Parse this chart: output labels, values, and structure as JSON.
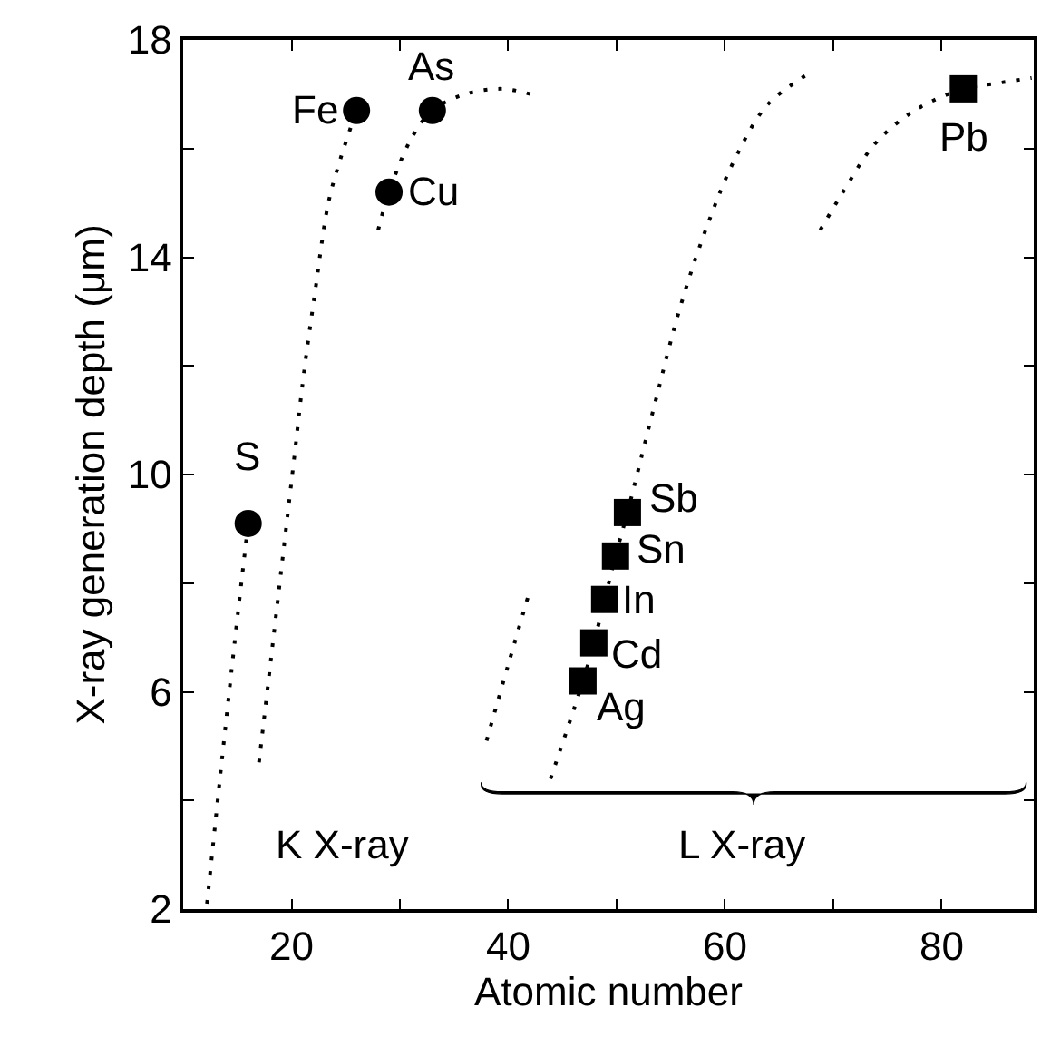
{
  "chart_data": {
    "type": "scatter",
    "xlabel": "Atomic number",
    "ylabel": "X-ray generation depth (μm)",
    "xlim": [
      10,
      88.5
    ],
    "ylim": [
      2,
      18
    ],
    "xticks": [
      20,
      {
        "value": 30,
        "label": null
      },
      40,
      {
        "value": 50,
        "label": null
      },
      60,
      {
        "value": 70,
        "label": null
      },
      80
    ],
    "yticks": [
      2,
      {
        "value": 4,
        "label": null
      },
      6,
      {
        "value": 8,
        "label": null
      },
      10,
      {
        "value": 12,
        "label": null
      },
      14,
      {
        "value": 16,
        "label": null
      },
      18
    ],
    "series": [
      {
        "type": "line",
        "color": "#000000",
        "marker": "none",
        "line_style": "dotted",
        "x": [
          12.2,
          13.5,
          14.8,
          16.0
        ],
        "values": [
          2.1,
          4.6,
          7.0,
          9.1
        ]
      },
      {
        "type": "line",
        "color": "#000000",
        "marker": "none",
        "line_style": "dotted",
        "x": [
          17.0,
          20.3,
          21.1,
          22.2,
          23.4,
          24.5,
          26.0
        ],
        "values": [
          4.7,
          10.4,
          11.8,
          13.4,
          15.0,
          15.8,
          16.7
        ]
      },
      {
        "type": "line",
        "color": "#000000",
        "marker": "none",
        "line_style": "dotted",
        "x": [
          28.0,
          29.0,
          31.1,
          33.0,
          36.0,
          39.4,
          42.1
        ],
        "values": [
          14.5,
          15.2,
          16.2,
          16.7,
          17.0,
          17.1,
          17.0
        ]
      },
      {
        "type": "line",
        "color": "#000000",
        "marker": "none",
        "line_style": "dotted",
        "x": [
          38.0,
          40.0,
          41.9
        ],
        "values": [
          5.1,
          6.5,
          7.8
        ]
      },
      {
        "type": "line",
        "color": "#000000",
        "marker": "none",
        "line_style": "dotted",
        "x": [
          43.9,
          46.9,
          47.9,
          48.9,
          49.9,
          51.0,
          53.4,
          55.9,
          58.4,
          60.9,
          63.9,
          67.9
        ],
        "values": [
          4.4,
          6.2,
          6.9,
          7.7,
          8.5,
          9.3,
          11.2,
          13.1,
          14.6,
          15.8,
          16.8,
          17.4
        ]
      },
      {
        "type": "line",
        "color": "#000000",
        "marker": "none",
        "line_style": "dotted",
        "x": [
          68.8,
          70.9,
          73.9,
          77.5,
          82.0,
          85.0,
          88.3
        ],
        "values": [
          14.5,
          15.2,
          16.1,
          16.7,
          17.1,
          17.2,
          17.3
        ]
      },
      {
        "color": "#000000",
        "marker": "circle",
        "x": [
          16,
          26,
          29,
          33
        ],
        "values": [
          9.1,
          16.7,
          15.2,
          16.7
        ]
      },
      {
        "color": "#000000",
        "marker": "square",
        "x": [
          46.9,
          47.9,
          48.9,
          49.9,
          51.0,
          82.0
        ],
        "values": [
          6.2,
          6.9,
          7.7,
          8.5,
          9.3,
          17.1
        ]
      }
    ],
    "annotations": [
      {
        "text": "S",
        "x": 16,
        "y": 9.1
      },
      {
        "text": "Fe",
        "x": 26,
        "y": 16.7
      },
      {
        "text": "Cu",
        "x": 29,
        "y": 15.2
      },
      {
        "text": "As",
        "x": 33,
        "y": 16.7
      },
      {
        "text": "Ag",
        "x": 46.9,
        "y": 6.2
      },
      {
        "text": "Cd",
        "x": 47.9,
        "y": 6.9
      },
      {
        "text": "In",
        "x": 48.9,
        "y": 7.7
      },
      {
        "text": "Sn",
        "x": 49.9,
        "y": 8.5
      },
      {
        "text": "Sb",
        "x": 51.0,
        "y": 9.3
      },
      {
        "text": "Pb",
        "x": 82.0,
        "y": 17.1
      },
      "K X-ray",
      "L X-ray"
    ]
  }
}
